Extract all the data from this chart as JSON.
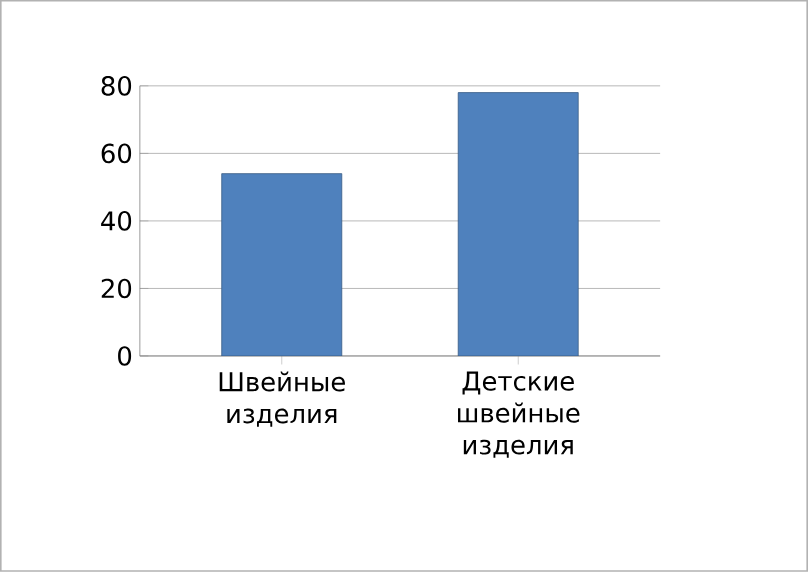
{
  "chart_data": {
    "type": "bar",
    "categories": [
      "Швейные изделия",
      "Детские швейные изделия"
    ],
    "values": [
      54,
      78
    ],
    "color": "#4f81bd",
    "ylim": [
      0,
      80
    ],
    "yticks": [
      0,
      20,
      40,
      60,
      80
    ],
    "grid": "y"
  }
}
